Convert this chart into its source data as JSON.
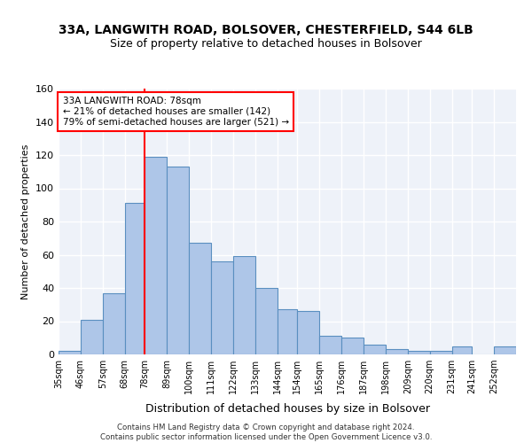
{
  "title1": "33A, LANGWITH ROAD, BOLSOVER, CHESTERFIELD, S44 6LB",
  "title2": "Size of property relative to detached houses in Bolsover",
  "xlabel": "Distribution of detached houses by size in Bolsover",
  "ylabel": "Number of detached properties",
  "categories": [
    "35sqm",
    "46sqm",
    "57sqm",
    "68sqm",
    "78sqm",
    "89sqm",
    "100sqm",
    "111sqm",
    "122sqm",
    "133sqm",
    "144sqm",
    "154sqm",
    "165sqm",
    "176sqm",
    "187sqm",
    "198sqm",
    "209sqm",
    "220sqm",
    "231sqm",
    "241sqm",
    "252sqm"
  ],
  "bar_color": "#aec6e8",
  "bar_edge_color": "#5a8fc0",
  "vline_x": 78,
  "vline_color": "red",
  "annotation_text": "33A LANGWITH ROAD: 78sqm\n← 21% of detached houses are smaller (142)\n79% of semi-detached houses are larger (521) →",
  "annotation_box_color": "white",
  "annotation_box_edge": "red",
  "ylim": [
    0,
    160
  ],
  "yticks": [
    0,
    20,
    40,
    60,
    80,
    100,
    120,
    140,
    160
  ],
  "footer_line1": "Contains HM Land Registry data © Crown copyright and database right 2024.",
  "footer_line2": "Contains public sector information licensed under the Open Government Licence v3.0.",
  "background_color": "#eef2f9",
  "grid_color": "#ffffff",
  "bin_edges": [
    35,
    46,
    57,
    68,
    78,
    89,
    100,
    111,
    122,
    133,
    144,
    154,
    165,
    176,
    187,
    198,
    209,
    220,
    231,
    241,
    252,
    263
  ],
  "bin_counts": [
    2,
    21,
    37,
    91,
    119,
    113,
    67,
    56,
    59,
    40,
    27,
    26,
    11,
    10,
    6,
    3,
    2,
    2,
    5,
    0,
    5
  ]
}
